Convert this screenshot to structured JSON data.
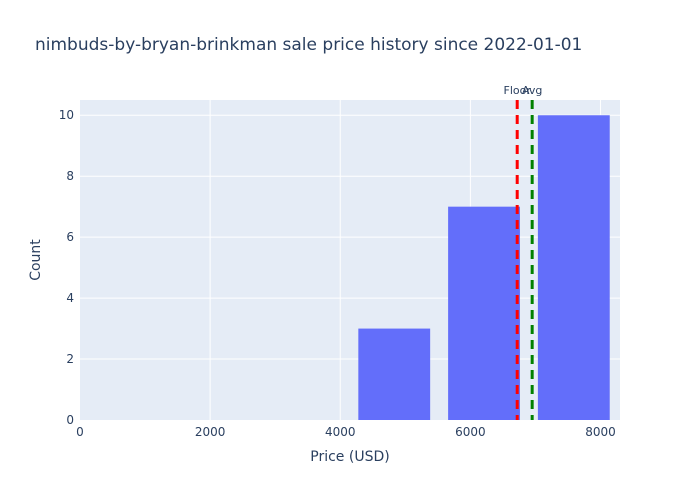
{
  "chart_data": {
    "type": "bar",
    "title": "nimbuds-by-bryan-brinkman sale price history since 2022-01-01",
    "xlabel": "Price (USD)",
    "ylabel": "Count",
    "xlim": [
      0,
      8300
    ],
    "ylim": [
      0,
      10.5
    ],
    "x_ticks": [
      0,
      2000,
      4000,
      6000,
      8000
    ],
    "y_ticks": [
      0,
      2,
      4,
      6,
      8,
      10
    ],
    "bins": [
      {
        "start": 0,
        "end": 1380,
        "count": 0
      },
      {
        "start": 1380,
        "end": 2760,
        "count": 0
      },
      {
        "start": 2760,
        "end": 4140,
        "count": 0
      },
      {
        "start": 4140,
        "end": 5520,
        "count": 3
      },
      {
        "start": 5520,
        "end": 6900,
        "count": 7
      },
      {
        "start": 6900,
        "end": 8280,
        "count": 10
      }
    ],
    "bar_color": "#636efa",
    "plot_background": "#e5ecf6",
    "grid": true,
    "reference_lines": [
      {
        "label": "Floor",
        "x": 6720,
        "color": "#ff0000",
        "style": "dashed"
      },
      {
        "label": "Avg",
        "x": 6950,
        "color": "#008000",
        "style": "dashed"
      }
    ]
  }
}
